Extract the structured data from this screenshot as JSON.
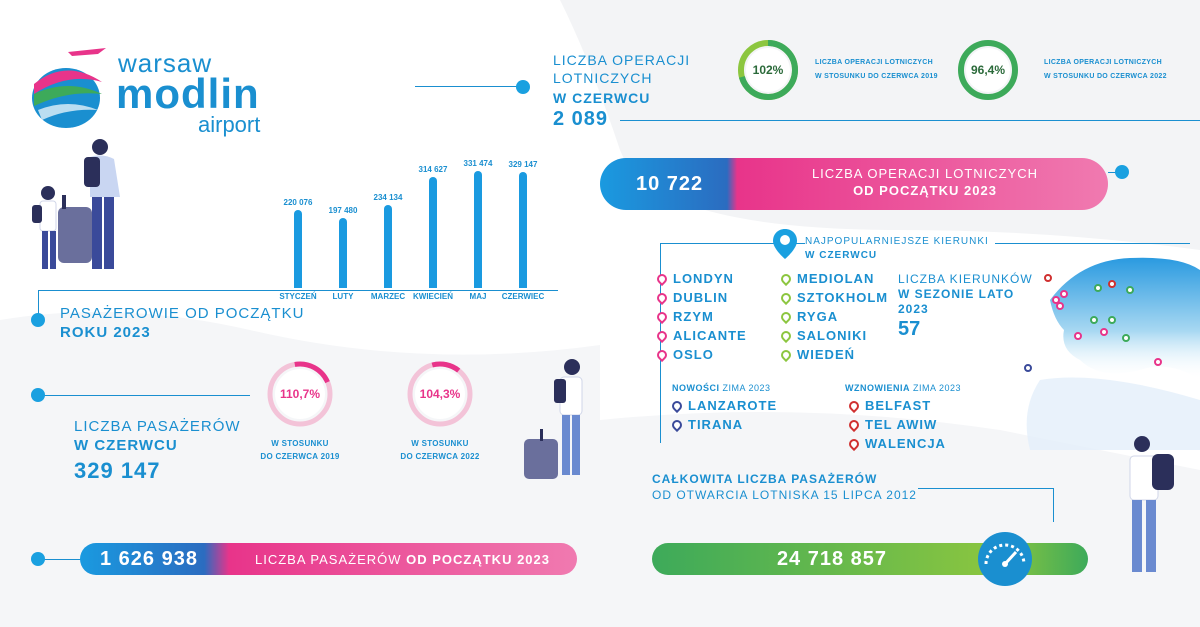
{
  "logo": {
    "line1": "warsaw",
    "line2": "modlin",
    "line3": "airport"
  },
  "operations_june": {
    "label1": "LICZBA OPERACJI",
    "label2": "LOTNICZYCH",
    "label3": "W CZERWCU",
    "value": "2 089"
  },
  "donut_ops_2019": {
    "value": "102%",
    "label1": "LICZBA OPERACJI LOTNICZYCH",
    "label2": "W STOSUNKU DO CZERWCA 2019"
  },
  "donut_ops_2022": {
    "value": "96,4%",
    "label1": "LICZBA OPERACJI LOTNICZYCH",
    "label2": "W STOSUNKU DO CZERWCA 2022"
  },
  "operations_ytd": {
    "value": "10 722",
    "label1": "LICZBA OPERACJI LOTNICZYCH",
    "label2": "OD POCZĄTKU 2023"
  },
  "chart_data": {
    "type": "bar",
    "categories": [
      "STYCZEŃ",
      "LUTY",
      "MARZEC",
      "KWIECIEŃ",
      "MAJ",
      "CZERWIEC"
    ],
    "values": [
      220076,
      197480,
      234134,
      314627,
      331474,
      329147
    ],
    "value_labels": [
      "220 076",
      "197 480",
      "234 134",
      "314 627",
      "331 474",
      "329 147"
    ],
    "title": "",
    "ylim": [
      0,
      340000
    ]
  },
  "passengers_ytd_label": {
    "line1": "PASAŻEROWIE OD POCZĄTKU",
    "line2": "ROKU 2023"
  },
  "passengers_june": {
    "label1": "LICZBA PASAŻERÓW",
    "label2": "W CZERWCU",
    "value": "329 147"
  },
  "donut_pax_2019": {
    "value": "110,7%",
    "label1": "W STOSUNKU",
    "label2": "DO CZERWCA 2019"
  },
  "donut_pax_2022": {
    "value": "104,3%",
    "label1": "W STOSUNKU",
    "label2": "DO CZERWCA 2022"
  },
  "passengers_ytd": {
    "value": "1 626 938",
    "label_a": "LICZBA PASAŻERÓW ",
    "label_b": "OD POCZĄTKU 2023"
  },
  "destinations": {
    "title1": "NAJPOPULARNIEJSZE KIERUNKI",
    "title2": "W CZERWCU",
    "col1": [
      "LONDYN",
      "DUBLIN",
      "RZYM",
      "ALICANTE",
      "OSLO"
    ],
    "col2": [
      "MEDIOLAN",
      "SZTOKHOLM",
      "RYGA",
      "SALONIKI",
      "WIEDEŃ"
    ],
    "summer_label1": "LICZBA KIERUNKÓW",
    "summer_label2": "W SEZONIE LATO",
    "summer_label3": "2023",
    "summer_value": "57",
    "new_title_a": "NOWOŚCI",
    "new_title_b": " ZIMA 2023",
    "new_items": [
      "LANZAROTE",
      "TIRANA"
    ],
    "resume_title_a": "WZNOWIENIA",
    "resume_title_b": " ZIMA 2023",
    "resume_items": [
      "BELFAST",
      "TEL AWIW",
      "WALENCJA"
    ]
  },
  "total_pax": {
    "label1": "CAŁKOWITA LICZBA PASAŻERÓW",
    "label2": "OD OTWARCIA LOTNISKA 15 LIPCA 2012",
    "value": "24 718 857"
  },
  "colors": {
    "blue": "#1a8fd0",
    "pink": "#e8348a",
    "green": "#3daa5a",
    "lime": "#8cc63f"
  }
}
